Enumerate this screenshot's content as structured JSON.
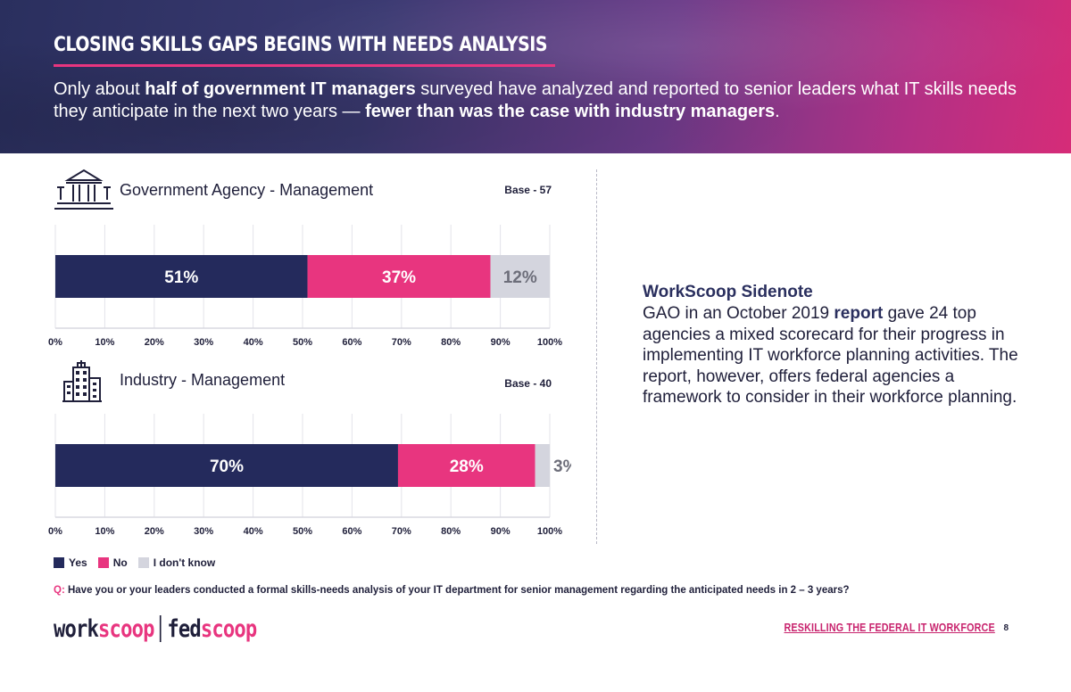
{
  "header": {
    "title": "Closing skills gaps begins with needs analysis",
    "subtitle_parts": [
      {
        "text": "Only about ",
        "bold": false
      },
      {
        "text": "half of government IT managers",
        "bold": true
      },
      {
        "text": " surveyed have analyzed and reported to senior leaders what IT skills needs they anticipate in the next two years — ",
        "bold": false
      },
      {
        "text": "fewer than was the case with industry managers",
        "bold": true
      },
      {
        "text": ".",
        "bold": false
      }
    ]
  },
  "panels": [
    {
      "title": "Government Agency - Management",
      "base": "Base - 57",
      "icon": "government-building-icon"
    },
    {
      "title": "Industry - Management",
      "base": "Base - 40",
      "icon": "office-building-icon"
    }
  ],
  "colors": {
    "yes": "#242a5c",
    "no": "#e8357f",
    "dont_know": "#d4d5de",
    "accent": "#e8357f"
  },
  "chart_data": [
    {
      "type": "bar",
      "orientation": "horizontal",
      "stacked": true,
      "title": "Government Agency - Management",
      "categories": [
        "Government Agency - Management"
      ],
      "series": [
        {
          "name": "Yes",
          "values": [
            51
          ],
          "label": "51%"
        },
        {
          "name": "No",
          "values": [
            37
          ],
          "label": "37%"
        },
        {
          "name": "I don't know",
          "values": [
            12
          ],
          "label": "12%"
        }
      ],
      "xlim": [
        0,
        100
      ],
      "xticks": [
        "0%",
        "10%",
        "20%",
        "30%",
        "40%",
        "50%",
        "60%",
        "70%",
        "80%",
        "90%",
        "100%"
      ],
      "grid": true
    },
    {
      "type": "bar",
      "orientation": "horizontal",
      "stacked": true,
      "title": "Industry - Management",
      "categories": [
        "Industry - Management"
      ],
      "series": [
        {
          "name": "Yes",
          "values": [
            70
          ],
          "label": "70%"
        },
        {
          "name": "No",
          "values": [
            28
          ],
          "label": "28%"
        },
        {
          "name": "I don't know",
          "values": [
            3
          ],
          "label": "3%"
        }
      ],
      "xlim": [
        0,
        100
      ],
      "xticks": [
        "0%",
        "10%",
        "20%",
        "30%",
        "40%",
        "50%",
        "60%",
        "70%",
        "80%",
        "90%",
        "100%"
      ],
      "grid": true
    }
  ],
  "legend": {
    "yes": "Yes",
    "no": "No",
    "dont_know": "I don't know"
  },
  "sidenote": {
    "title": "WorkScoop Sidenote",
    "before_link": "GAO in an October 2019 ",
    "link": "report",
    "after_link": " gave 24 top agencies a mixed scorecard for their progress in implementing IT workforce planning activities. The report, however, offers federal agencies a framework to consider in their workforce planning."
  },
  "question": {
    "prefix": "Q:",
    "text": " Have you or your leaders conducted a formal skills-needs analysis of your IT department for senior management regarding the anticipated needs in 2 – 3 years?"
  },
  "footer": {
    "logo_work": "work",
    "logo_scoop1": "scoop",
    "logo_fed": "fed",
    "logo_scoop2": "scoop",
    "report_title": "Reskilling the Federal IT Workforce",
    "page_number": "8"
  }
}
